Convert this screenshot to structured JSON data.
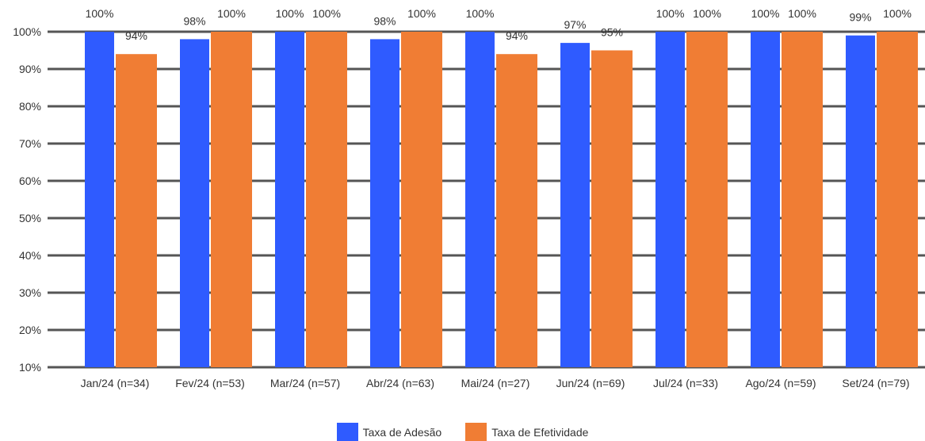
{
  "chart_data": {
    "type": "bar",
    "categories": [
      "Jan/24 (n=34)",
      "Fev/24 (n=53)",
      "Mar/24 (n=57)",
      "Abr/24 (n=63)",
      "Mai/24 (n=27)",
      "Jun/24 (n=69)",
      "Jul/24 (n=33)",
      "Ago/24 (n=59)",
      "Set/24 (n=79)"
    ],
    "series": [
      {
        "name": "Taxa de Adesão",
        "color": "#2f5bff",
        "values": [
          100,
          98,
          100,
          98,
          100,
          97,
          100,
          100,
          99
        ],
        "labels": [
          "100%",
          "98%",
          "100%",
          "98%",
          "100%",
          "97%",
          "100%",
          "100%",
          "99%"
        ]
      },
      {
        "name": "Taxa de Efetividade",
        "color": "#f07d34",
        "values": [
          94,
          100,
          100,
          100,
          94,
          95,
          100,
          100,
          100
        ],
        "labels": [
          "94%",
          "100%",
          "100%",
          "100%",
          "94%",
          "95%",
          "100%",
          "100%",
          "100%"
        ]
      }
    ],
    "yticks": [
      "100%",
      "90%",
      "80%",
      "70%",
      "60%",
      "50%",
      "40%",
      "30%",
      "20%",
      "10%"
    ],
    "ytick_values": [
      100,
      90,
      80,
      70,
      60,
      50,
      40,
      30,
      20,
      10
    ],
    "ylim": [
      10,
      100
    ],
    "title": "",
    "xlabel": "",
    "ylabel": "",
    "grid": true,
    "legend_position": "bottom-center"
  }
}
